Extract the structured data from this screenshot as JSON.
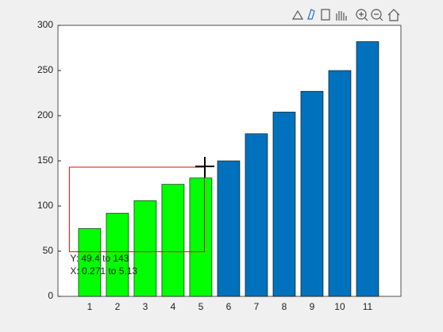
{
  "chart_data": {
    "type": "bar",
    "x": [
      1,
      2,
      3,
      4,
      5,
      6,
      7,
      8,
      9,
      10,
      11
    ],
    "values": [
      75,
      92,
      106,
      124,
      131,
      150,
      180,
      204,
      227,
      250,
      282
    ],
    "brushed": [
      true,
      true,
      true,
      true,
      true,
      false,
      false,
      false,
      false,
      false,
      false
    ],
    "color": "#0072bd",
    "brushed_color": "#00ff00",
    "xlim": [
      -0.14,
      12.2
    ],
    "xticks": [
      1,
      2,
      3,
      4,
      5,
      6,
      7,
      8,
      9,
      10,
      11
    ],
    "ylim": [
      0,
      300
    ],
    "yticks": [
      0,
      50,
      100,
      150,
      200,
      250,
      300
    ],
    "selection": {
      "x": [
        0.271,
        5.13
      ],
      "y": [
        49.4,
        143
      ],
      "color": "#ff0000",
      "label_y": "Y: 49.4 to 143",
      "label_x": "X: 0.271 to 5.13"
    }
  }
}
